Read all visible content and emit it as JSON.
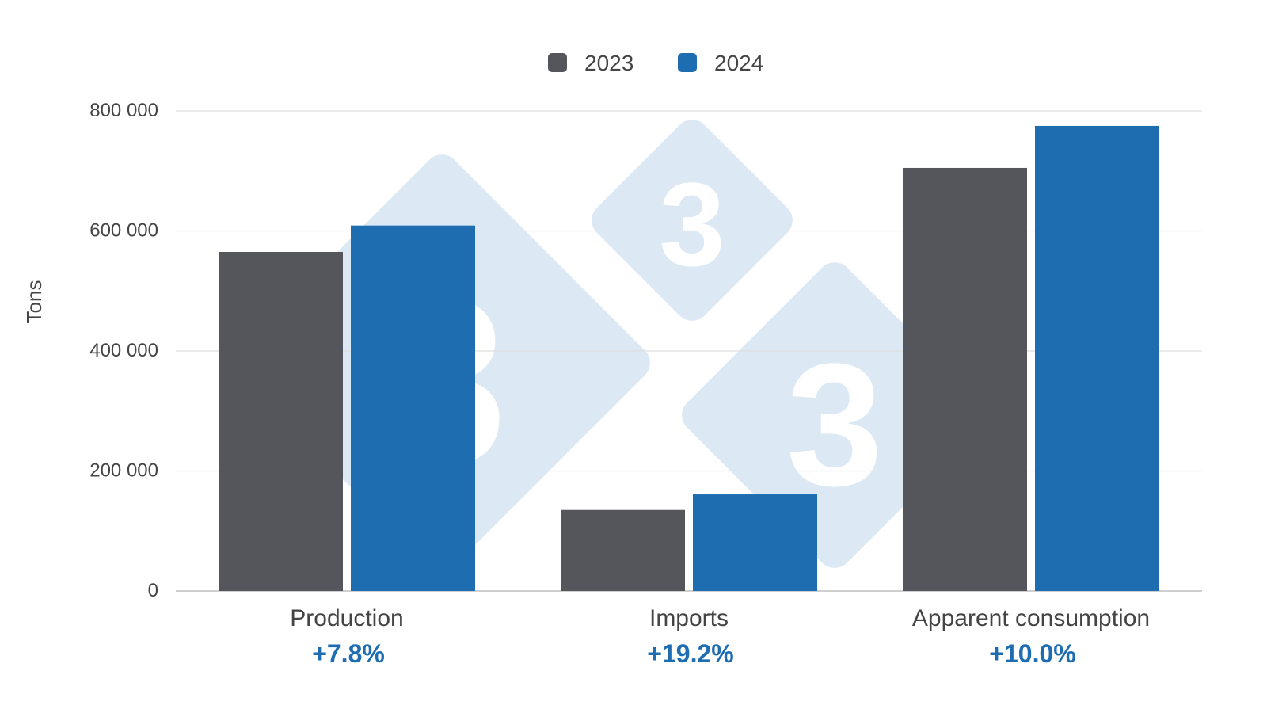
{
  "chart_data": {
    "type": "bar",
    "categories": [
      "Production",
      "Imports",
      "Apparent consumption"
    ],
    "category_changes": [
      "+7.8%",
      "+19.2%",
      "+10.0%"
    ],
    "series": [
      {
        "name": "2023",
        "values": [
          565000,
          135000,
          705000
        ],
        "color": "#54565b"
      },
      {
        "name": "2024",
        "values": [
          609000,
          161000,
          775000
        ],
        "color": "#1f6db1"
      }
    ],
    "ylabel": "Tons",
    "ylim": [
      0,
      800000
    ],
    "yticks": [
      0,
      200000,
      400000,
      600000,
      800000
    ],
    "ytick_labels": [
      "0",
      "200 000",
      "400 000",
      "600 000",
      "800 000"
    ],
    "grid": true,
    "legend_position": "top-center",
    "change_label_color": "#1f6db1",
    "watermark": {
      "glyph": "3",
      "color": "#dce9f4"
    }
  }
}
